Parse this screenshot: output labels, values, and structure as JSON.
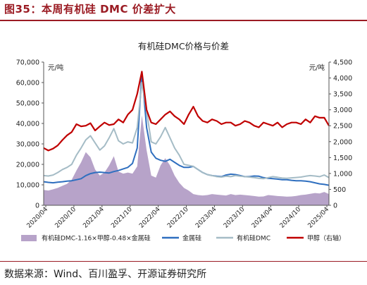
{
  "figure_title": "图35：本周有机硅 DMC 价差扩大",
  "source": "数据来源：Wind、百川盈孚、开源证券研究所",
  "colors": {
    "spread": "#b7a3c9",
    "metal": "#2f6fbf",
    "dmc": "#a5bcc6",
    "methanol": "#c00000",
    "brand": "#9b1c24"
  },
  "chart_data": {
    "type": "line",
    "title": "有机硅DMC价格与价差",
    "ylabel_left": "元/吨",
    "ylabel_right": "元/吨",
    "ylim_left": [
      0,
      70000
    ],
    "ylim_right": [
      0,
      4500
    ],
    "yticks_left": [
      "0",
      "10,000",
      "20,000",
      "30,000",
      "40,000",
      "50,000",
      "60,000",
      "70,000"
    ],
    "yticks_right": [
      "0",
      "500",
      "1,000",
      "1,500",
      "2,000",
      "2,500",
      "3,000",
      "3,500",
      "4,000",
      "4,500"
    ],
    "xticks": [
      "2020/04",
      "2020/10",
      "2021/04",
      "2021/10",
      "2022/04",
      "2022/10",
      "2023/04",
      "2023/10",
      "2024/04",
      "2024/10",
      "2025/04"
    ],
    "x_index_range": [
      0,
      61
    ],
    "grid": false,
    "legend_position": "bottom",
    "series": [
      {
        "name": "有机硅DMC-1.16×甲醇-0.48×金属硅",
        "kind": "area",
        "axis": "left",
        "x": [
          0,
          1,
          2,
          3,
          4,
          5,
          6,
          7,
          8,
          9,
          10,
          11,
          12,
          13,
          14,
          15,
          16,
          17,
          18,
          19,
          20,
          21,
          22,
          23,
          24,
          25,
          26,
          27,
          28,
          29,
          30,
          31,
          32,
          33,
          34,
          35,
          36,
          37,
          38,
          39,
          40,
          41,
          42,
          43,
          44,
          45,
          46,
          47,
          48,
          49,
          50,
          51,
          52,
          53,
          54,
          55,
          56,
          57,
          58,
          59,
          60,
          61
        ],
        "values": [
          7500,
          7200,
          7800,
          8500,
          9500,
          10500,
          12500,
          17000,
          21000,
          26000,
          23500,
          17500,
          14500,
          16000,
          19500,
          24000,
          16500,
          15500,
          16000,
          15500,
          19000,
          44000,
          27000,
          14500,
          13500,
          19500,
          23000,
          19500,
          14500,
          11000,
          8500,
          7200,
          5500,
          5000,
          4800,
          5000,
          5500,
          5200,
          5000,
          4800,
          5500,
          5000,
          5200,
          5000,
          4800,
          4500,
          4200,
          4300,
          5000,
          4800,
          4500,
          4400,
          4200,
          4300,
          4600,
          5000,
          5200,
          5600,
          6000,
          5800,
          6500,
          5500
        ]
      },
      {
        "name": "金属硅",
        "kind": "line",
        "axis": "left",
        "x": [
          0,
          1,
          2,
          3,
          4,
          5,
          6,
          7,
          8,
          9,
          10,
          11,
          12,
          13,
          14,
          15,
          16,
          17,
          18,
          19,
          20,
          21,
          22,
          23,
          24,
          25,
          26,
          27,
          28,
          29,
          30,
          31,
          32,
          33,
          34,
          35,
          36,
          37,
          38,
          39,
          40,
          41,
          42,
          43,
          44,
          45,
          46,
          47,
          48,
          49,
          50,
          51,
          52,
          53,
          54,
          55,
          56,
          57,
          58,
          59,
          60,
          61
        ],
        "values": [
          11500,
          11200,
          11000,
          11300,
          11500,
          11800,
          12000,
          12500,
          13000,
          14500,
          15500,
          16000,
          16200,
          16000,
          15800,
          16500,
          17000,
          17800,
          18500,
          20500,
          28000,
          65000,
          38000,
          26000,
          23000,
          22000,
          21500,
          22500,
          21000,
          19500,
          18500,
          18500,
          19000,
          17500,
          16000,
          15000,
          14500,
          14200,
          14000,
          14800,
          15200,
          15000,
          14500,
          14000,
          14000,
          14300,
          14200,
          13500,
          13200,
          13000,
          12800,
          12500,
          12500,
          12200,
          12000,
          12000,
          11800,
          11500,
          11000,
          10500,
          10200,
          9800
        ]
      },
      {
        "name": "有机硅DMC",
        "kind": "line",
        "axis": "left",
        "x": [
          0,
          1,
          2,
          3,
          4,
          5,
          6,
          7,
          8,
          9,
          10,
          11,
          12,
          13,
          14,
          15,
          16,
          17,
          18,
          19,
          20,
          21,
          22,
          23,
          24,
          25,
          26,
          27,
          28,
          29,
          30,
          31,
          32,
          33,
          34,
          35,
          36,
          37,
          38,
          39,
          40,
          41,
          42,
          43,
          44,
          45,
          46,
          47,
          48,
          49,
          50,
          51,
          52,
          53,
          54,
          55,
          56,
          57,
          58,
          59,
          60,
          61
        ],
        "values": [
          14500,
          14300,
          14800,
          16000,
          17500,
          18500,
          20000,
          24500,
          28000,
          32000,
          34000,
          30500,
          27000,
          29000,
          33000,
          37500,
          31500,
          30000,
          31000,
          30500,
          38000,
          60000,
          46000,
          31000,
          30000,
          33500,
          38000,
          33000,
          28000,
          24500,
          20000,
          19500,
          19000,
          17500,
          16000,
          15000,
          14500,
          14000,
          13800,
          14200,
          14000,
          14500,
          14200,
          14000,
          13800,
          13500,
          13200,
          13000,
          13500,
          14000,
          13700,
          13300,
          13200,
          13400,
          13600,
          13800,
          14200,
          14500,
          14300,
          14000,
          14800,
          13500
        ]
      },
      {
        "name": "甲醇（右轴）",
        "kind": "line",
        "axis": "right",
        "x": [
          0,
          1,
          2,
          3,
          4,
          5,
          6,
          7,
          8,
          9,
          10,
          11,
          12,
          13,
          14,
          15,
          16,
          17,
          18,
          19,
          20,
          21,
          22,
          23,
          24,
          25,
          26,
          27,
          28,
          29,
          30,
          31,
          32,
          33,
          34,
          35,
          36,
          37,
          38,
          39,
          40,
          41,
          42,
          43,
          44,
          45,
          46,
          47,
          48,
          49,
          50,
          51,
          52,
          53,
          54,
          55,
          56,
          57,
          58,
          59,
          60,
          61
        ],
        "values": [
          1800,
          1720,
          1780,
          1880,
          2050,
          2200,
          2300,
          2550,
          2480,
          2500,
          2580,
          2350,
          2480,
          2600,
          2520,
          2550,
          2700,
          2600,
          2850,
          3000,
          3500,
          4200,
          3000,
          2600,
          2550,
          2700,
          2850,
          2950,
          2800,
          2700,
          2550,
          2850,
          3100,
          2800,
          2650,
          2600,
          2700,
          2650,
          2550,
          2600,
          2600,
          2500,
          2550,
          2650,
          2600,
          2500,
          2450,
          2600,
          2550,
          2500,
          2600,
          2450,
          2550,
          2600,
          2600,
          2550,
          2700,
          2600,
          2800,
          2750,
          2750,
          2500
        ]
      }
    ]
  }
}
